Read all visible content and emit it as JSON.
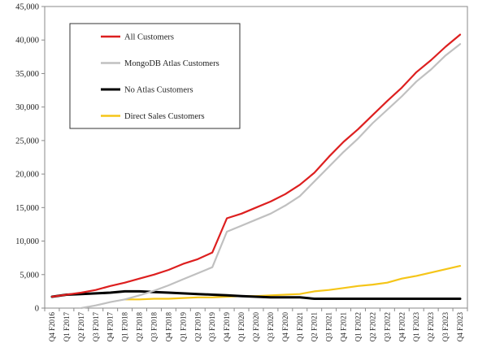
{
  "chart_data": {
    "type": "line",
    "title": "",
    "xlabel": "",
    "ylabel": "",
    "ylim": [
      0,
      45000
    ],
    "yticks": [
      0,
      5000,
      10000,
      15000,
      20000,
      25000,
      30000,
      35000,
      40000,
      45000
    ],
    "ytick_labels": [
      "0",
      "5,000",
      "10,000",
      "15,000",
      "20,000",
      "25,000",
      "30,000",
      "35,000",
      "40,000",
      "45,000"
    ],
    "grid": false,
    "legend_position": "top-left",
    "categories": [
      "Q4 F2016",
      "Q1 F2017",
      "Q2 F2017",
      "Q3 F2017",
      "Q4 F2017",
      "Q1 F2018",
      "Q2 F2018",
      "Q3 F2018",
      "Q4 F2018",
      "Q1 F2019",
      "Q2 F2019",
      "Q3 F2019",
      "Q4 F2019",
      "Q1 F2020",
      "Q2 F2020",
      "Q3 F2020",
      "Q4 F2020",
      "Q1 F2021",
      "Q2 F2021",
      "Q3 F2021",
      "Q4 F2021",
      "Q1 F2022",
      "Q2 F2022",
      "Q3 F2022",
      "Q4 F2022",
      "Q1 F2023",
      "Q2 F2023",
      "Q3 F2023",
      "Q4 F2023"
    ],
    "series": [
      {
        "name": "All Customers",
        "color": "#dd1f1f",
        "values": [
          1700,
          2000,
          2300,
          2700,
          3300,
          3800,
          4400,
          5000,
          5700,
          6600,
          7300,
          8300,
          13400,
          14100,
          15000,
          15900,
          17000,
          18400,
          20200,
          22600,
          24800,
          26700,
          28800,
          30900,
          32900,
          35200,
          37000,
          39000,
          40800
        ]
      },
      {
        "name": "MongoDB Atlas Customers",
        "color": "#c0c0c0",
        "values": [
          null,
          null,
          0,
          400,
          900,
          1300,
          1900,
          2600,
          3400,
          4300,
          5200,
          6100,
          11400,
          12300,
          13200,
          14100,
          15300,
          16700,
          18900,
          21100,
          23300,
          25300,
          27600,
          29600,
          31600,
          33800,
          35600,
          37700,
          39400
        ]
      },
      {
        "name": "No Atlas Customers",
        "color": "#000000",
        "values": [
          1700,
          2000,
          2100,
          2200,
          2300,
          2500,
          2500,
          2400,
          2300,
          2200,
          2100,
          2000,
          1900,
          1800,
          1700,
          1600,
          1600,
          1600,
          1400,
          1400,
          1400,
          1400,
          1400,
          1400,
          1400,
          1400,
          1400,
          1400,
          1400
        ]
      },
      {
        "name": "Direct Sales Customers",
        "color": "#f5c518",
        "values": [
          null,
          null,
          null,
          null,
          null,
          1300,
          1300,
          1400,
          1400,
          1500,
          1600,
          1600,
          1700,
          1800,
          1800,
          1900,
          2000,
          2100,
          2500,
          2700,
          3000,
          3300,
          3500,
          3800,
          4400,
          4800,
          5300,
          5800,
          6300
        ]
      }
    ]
  }
}
